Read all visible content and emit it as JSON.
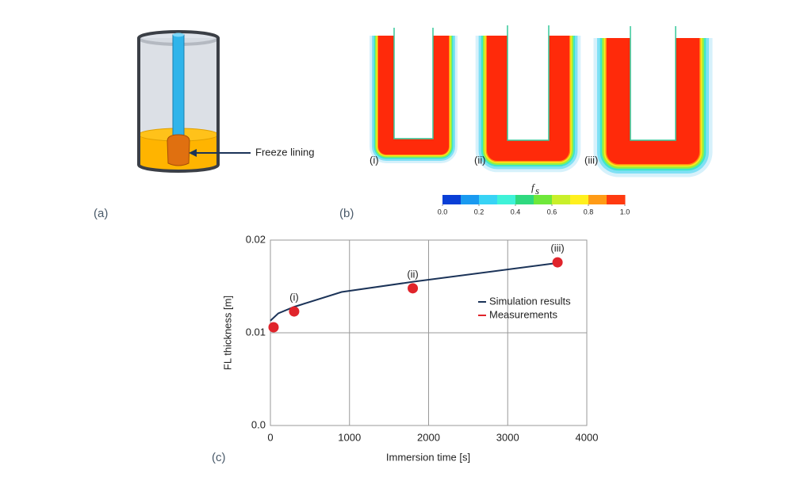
{
  "panel_a": {
    "label": "(a)",
    "annotation": "Freeze lining"
  },
  "panel_b": {
    "label": "(b)",
    "subpanels": [
      "(i)",
      "(ii)",
      "(iii)"
    ],
    "colorbar": {
      "title": "f",
      "title_sub": "s",
      "lim": [
        0,
        1
      ],
      "ticks": [
        {
          "value": 0,
          "label": "0.0"
        },
        0.2,
        0.4,
        0.6,
        0.8,
        {
          "value": 1,
          "label": "1.0"
        }
      ],
      "colors": [
        "#0a3fd6",
        "#1a9af0",
        "#38d3f5",
        "#3ff2d8",
        "#2fd97f",
        "#6fe83a",
        "#c9ef2a",
        "#fff01e",
        "#ff9b16",
        "#ff3a10"
      ]
    }
  },
  "chart_data": {
    "type": "line",
    "label": "(c)",
    "x_label": "Immersion time [s]",
    "y_label": "FL thickness [m]",
    "xlim": [
      0,
      4000
    ],
    "ylim": [
      0,
      0.02
    ],
    "xticks": [
      0,
      1000,
      2000,
      3000,
      4000
    ],
    "yticks": [
      {
        "value": 0,
        "label": "0.0"
      },
      0.01,
      0.02
    ],
    "grid": true,
    "legend": "right",
    "series": [
      {
        "name": "Simulation results",
        "color": "#1b3358",
        "type": "line",
        "x": [
          0,
          100,
          300,
          900,
          1800,
          3600
        ],
        "values": [
          0.0113,
          0.0121,
          0.0128,
          0.0144,
          0.0155,
          0.0175
        ]
      },
      {
        "name": "Measurements",
        "color": "#e0242b",
        "type": "scatter",
        "x": [
          40,
          300,
          1800,
          3630
        ],
        "values": [
          0.0106,
          0.0123,
          0.0148,
          0.0176
        ],
        "labels": [
          null,
          "(i)",
          "(ii)",
          "(iii)"
        ]
      }
    ]
  }
}
